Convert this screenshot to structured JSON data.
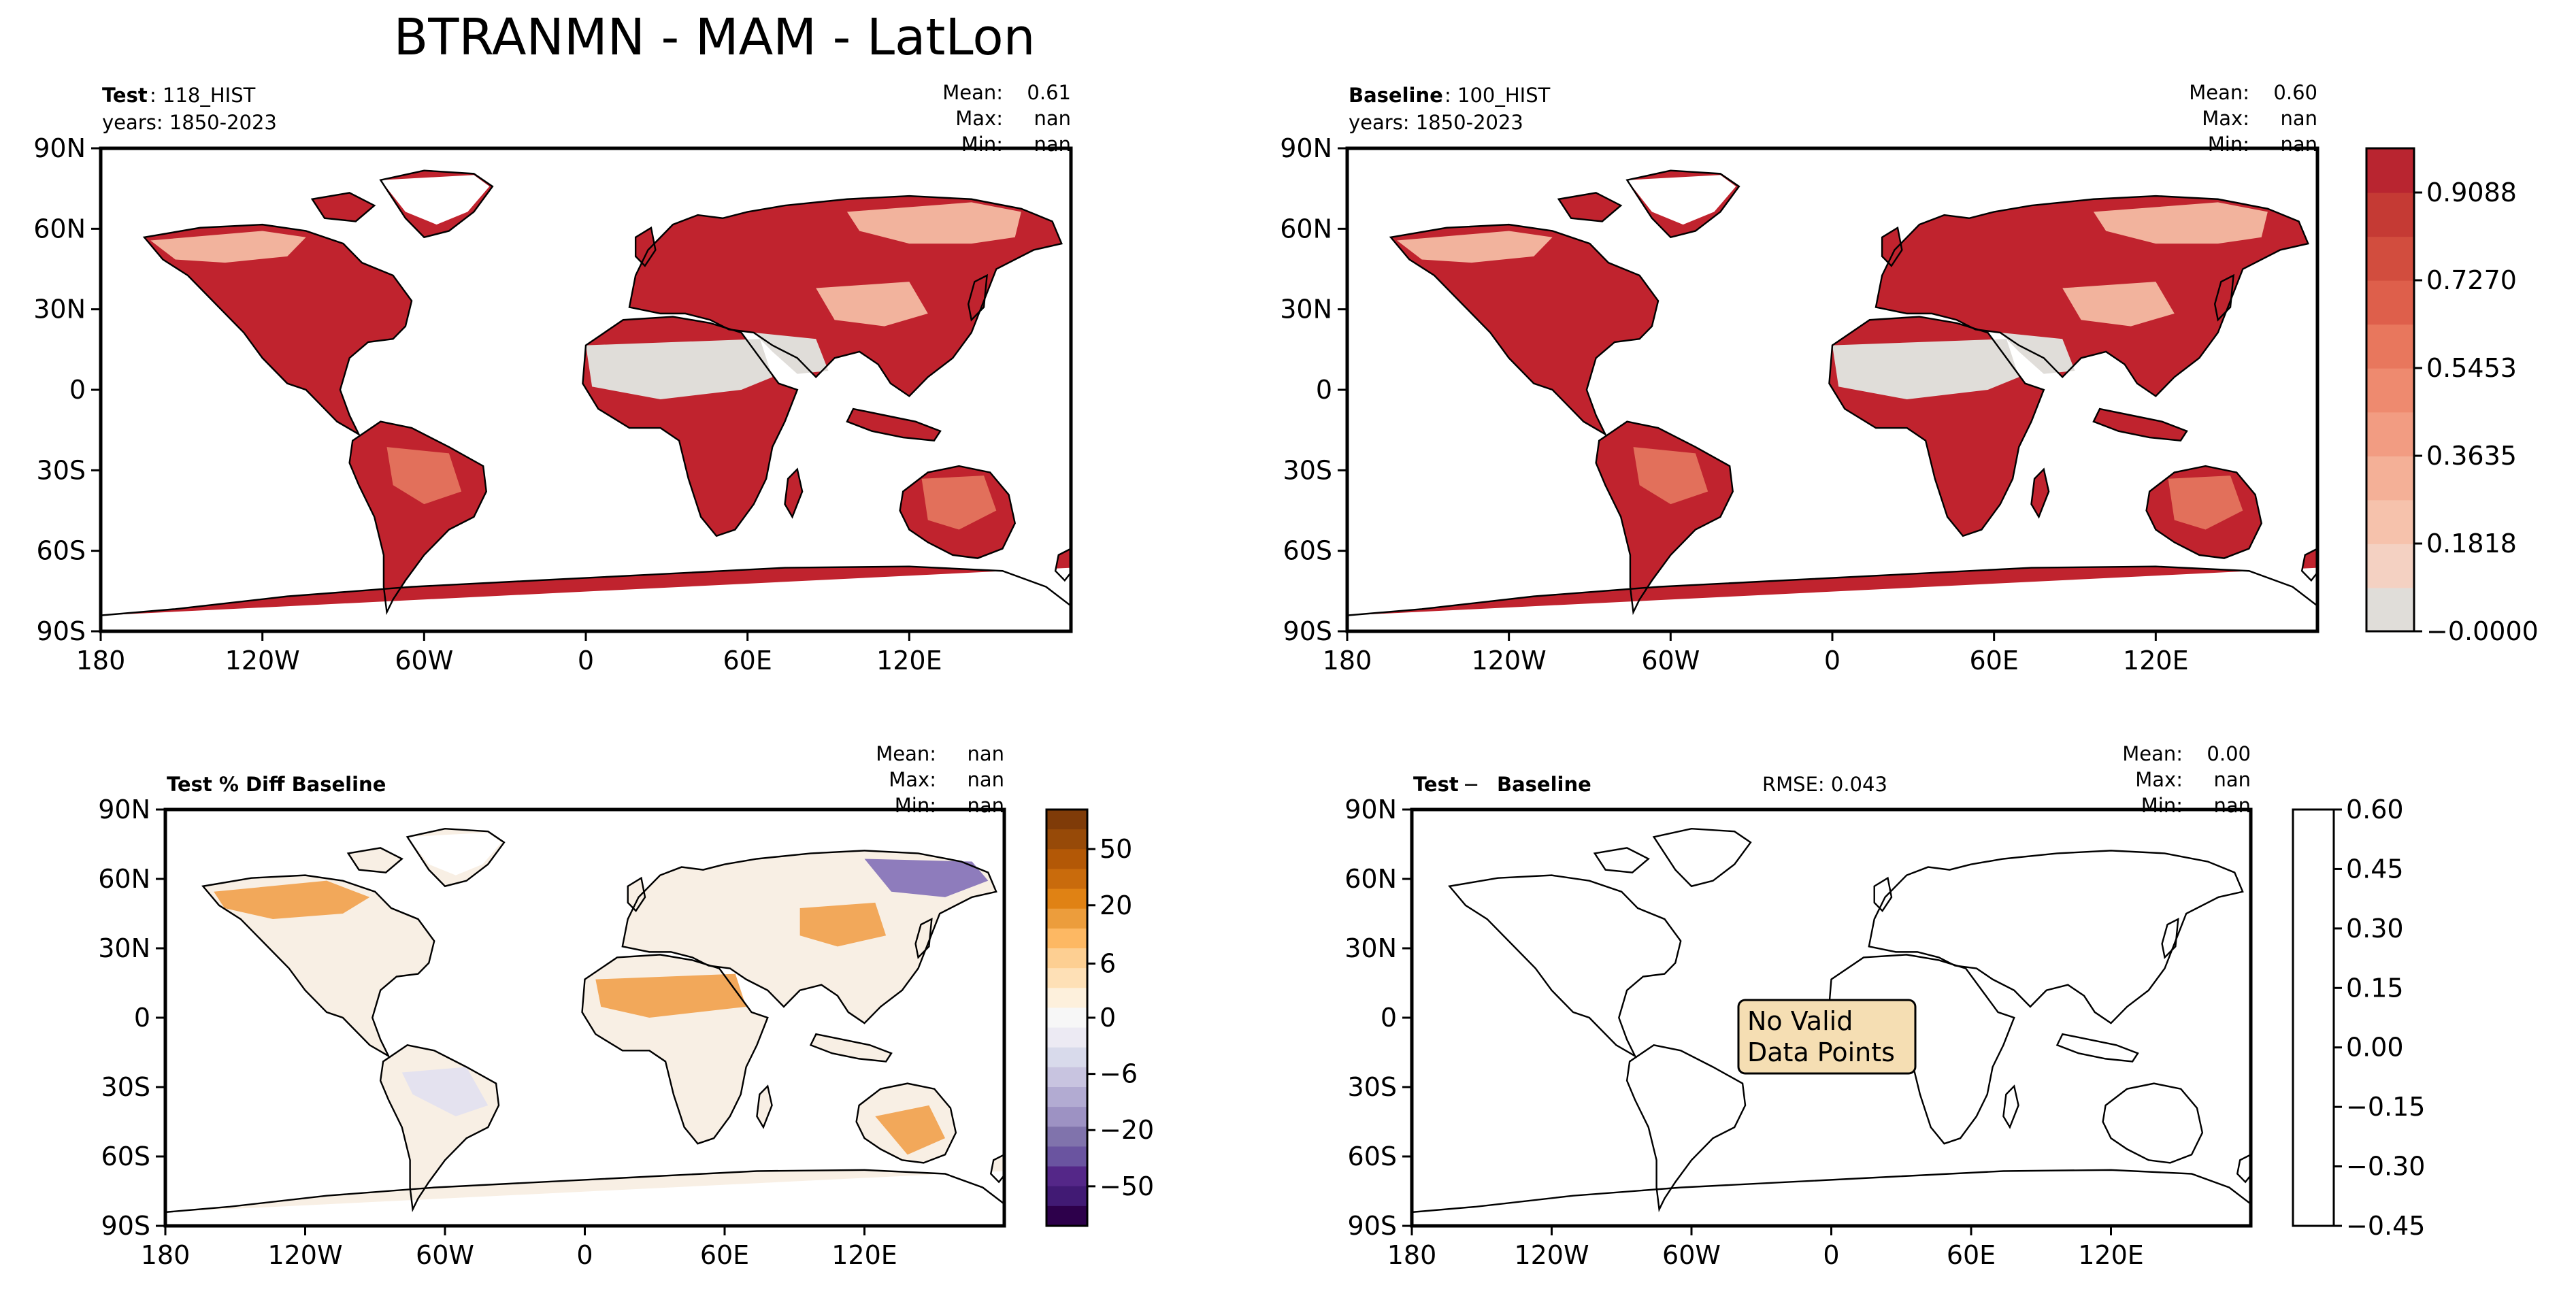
{
  "title": "BTRANMN - MAM - LatLon",
  "lat_ticks": [
    "90N",
    "60N",
    "30N",
    "0",
    "30S",
    "60S",
    "90S"
  ],
  "lon_ticks": [
    "180",
    "120W",
    "60W",
    "0",
    "60E",
    "120E"
  ],
  "panels": {
    "test": {
      "label_bold": "Test",
      "label_rest": ": 118_HIST",
      "years": "years: 1850-2023",
      "stats": {
        "mean_label": "Mean:",
        "mean": "0.61",
        "max_label": "Max:",
        "max": "nan",
        "min_label": "Min:",
        "min": "nan"
      }
    },
    "baseline": {
      "label_bold": "Baseline",
      "label_rest": ": 100_HIST",
      "years": "years: 1850-2023",
      "stats": {
        "mean_label": "Mean:",
        "mean": "0.60",
        "max_label": "Max:",
        "max": "nan",
        "min_label": "Min:",
        "min": "nan"
      }
    },
    "pctdiff": {
      "label_bold": "Test % Diff Baseline",
      "stats": {
        "mean_label": "Mean:",
        "mean": "nan",
        "max_label": "Max:",
        "max": "nan",
        "min_label": "Min:",
        "min": "nan"
      }
    },
    "diff": {
      "label_bold": "Test",
      "label_sep": " − ",
      "label_bold2": "Baseline",
      "rmse": "RMSE: 0.043",
      "no_data": [
        "No Valid",
        "Data Points"
      ],
      "stats": {
        "mean_label": "Mean:",
        "mean": "0.00",
        "max_label": "Max:",
        "max": "nan",
        "min_label": "Min:",
        "min": "nan"
      }
    }
  },
  "colorbars": {
    "btran": {
      "ticks": [
        "0.9088",
        "0.7270",
        "0.5453",
        "0.3635",
        "0.1818",
        "−0.0000"
      ],
      "colors": [
        "#e0ddd9",
        "#f4d1c2",
        "#f6c2ac",
        "#f4b097",
        "#f29c82",
        "#ee8a6f",
        "#e8775d",
        "#de5f4b",
        "#d24d3e",
        "#c53a34",
        "#b92530"
      ]
    },
    "pct": {
      "ticks": [
        "50",
        "20",
        "6",
        "0",
        "−6",
        "−20",
        "−50"
      ],
      "colors_top_to_bottom": [
        "#7f3b08",
        "#974a08",
        "#b35806",
        "#c96b0c",
        "#e08214",
        "#ec9d3c",
        "#fdb863",
        "#fdcf92",
        "#fee0b6",
        "#fdf0dc",
        "#f7f7f7",
        "#eceaf3",
        "#d8daeb",
        "#c8c4e0",
        "#b2abd2",
        "#9d92c3",
        "#8073ac",
        "#6a54a0",
        "#542788",
        "#411a74",
        "#2d004b"
      ]
    },
    "diff": {
      "ticks": [
        "0.60",
        "0.45",
        "0.30",
        "0.15",
        "0.00",
        "−0.15",
        "−0.30",
        "−0.45"
      ]
    }
  },
  "colors": {
    "land_high": "#c0232e",
    "land_mid": "#e2705b",
    "land_low": "#f2b39d",
    "desert": "#e0ddd9",
    "pct_orange": "#f2a85a",
    "pct_purple": "#8e7cbc",
    "pct_neutral": "#f8efe4",
    "no_data_box": "#f5deb3"
  }
}
